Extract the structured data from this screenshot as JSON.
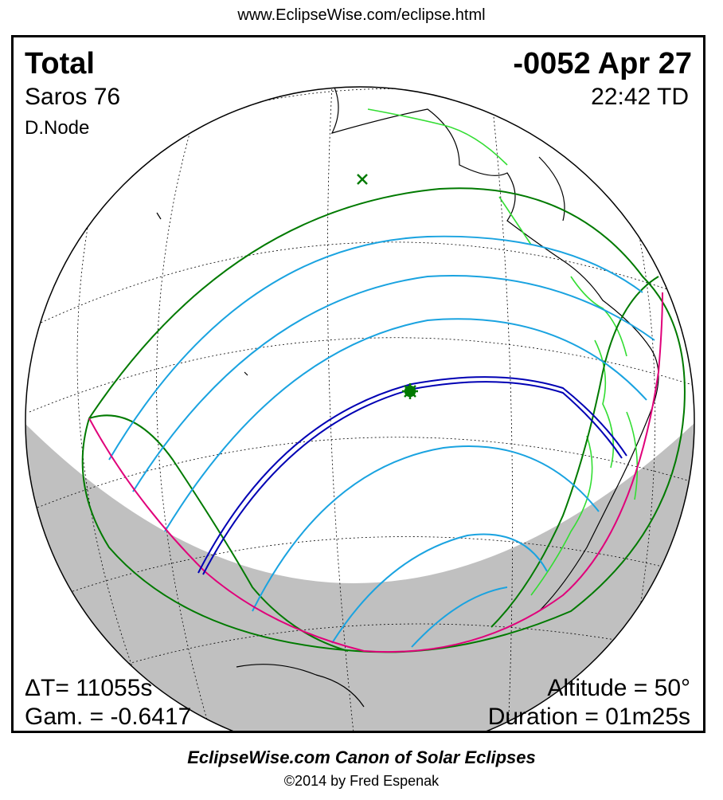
{
  "header": {
    "url": "www.EclipseWise.com/eclipse.html"
  },
  "eclipse": {
    "type": "Total",
    "date": "-0052 Apr 27",
    "saros": "Saros  76",
    "time": "22:42 TD",
    "node": "D.Node",
    "delta_t": "ΔT=  11055s",
    "gamma": "Gam. = -0.6417",
    "altitude": "Altitude = 50°",
    "duration": "Duration = 01m25s"
  },
  "colors": {
    "penumbra_limit": "#007a00",
    "penumbra_band": "#1aa3e0",
    "rise_set_curve": "#e0007a",
    "umbral_path": "#0000b4",
    "coastline": "#000000",
    "borders": "#33dd33",
    "night_shade": "#c0c0c0",
    "greatest_eclipse_marker": "#007a00"
  },
  "footer": {
    "title": "EclipseWise.com Canon of Solar Eclipses",
    "copyright": "©2014 by Fred Espenak"
  }
}
